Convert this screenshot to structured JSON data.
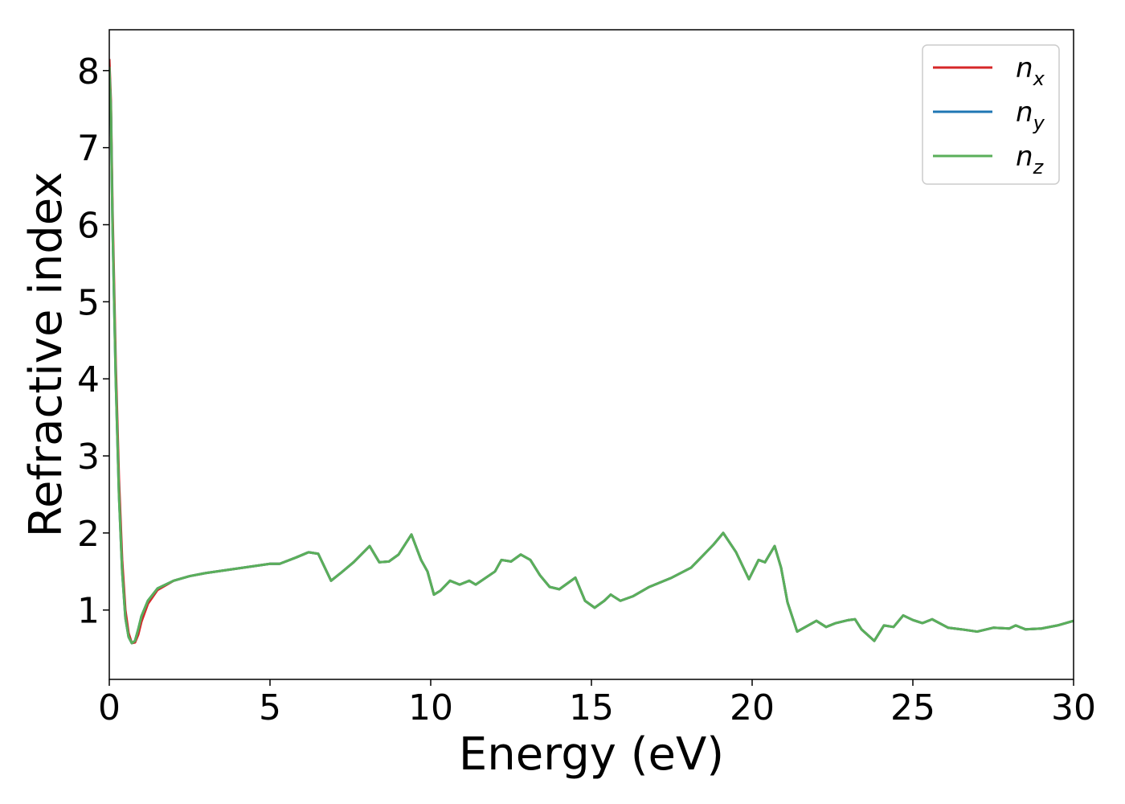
{
  "chart_data": {
    "type": "line",
    "x_label": "Energy (eV)",
    "y_label": "Refractive index",
    "x": [
      0.0,
      0.05,
      0.1,
      0.2,
      0.3,
      0.4,
      0.5,
      0.6,
      0.7,
      0.8,
      0.9,
      1.0,
      1.2,
      1.5,
      2.0,
      2.5,
      3.0,
      4.0,
      5.0,
      5.3,
      5.8,
      6.2,
      6.5,
      6.9,
      7.2,
      7.6,
      8.1,
      8.4,
      8.7,
      9.0,
      9.4,
      9.7,
      9.9,
      10.1,
      10.3,
      10.6,
      10.9,
      11.2,
      11.4,
      12.0,
      12.2,
      12.5,
      12.8,
      13.1,
      13.4,
      13.7,
      14.0,
      14.5,
      14.8,
      15.1,
      15.4,
      15.6,
      15.9,
      16.3,
      16.8,
      17.5,
      18.1,
      18.5,
      18.8,
      19.1,
      19.5,
      19.9,
      20.2,
      20.4,
      20.7,
      20.9,
      21.1,
      21.4,
      22.0,
      22.3,
      22.6,
      23.0,
      23.2,
      23.4,
      23.8,
      24.1,
      24.4,
      24.7,
      25.0,
      25.3,
      25.6,
      26.1,
      26.5,
      27.0,
      27.5,
      28.0,
      28.2,
      28.5,
      29.0,
      29.5,
      30.0
    ],
    "series": [
      {
        "name": "n_x",
        "color": "#d62728",
        "values": [
          8.15,
          7.6,
          6.2,
          4.2,
          2.7,
          1.65,
          1.0,
          0.7,
          0.57,
          0.58,
          0.68,
          0.85,
          1.08,
          1.26,
          1.38,
          1.44,
          1.48,
          1.54,
          1.6,
          1.6,
          1.68,
          1.75,
          1.73,
          1.38,
          1.48,
          1.62,
          1.83,
          1.62,
          1.63,
          1.72,
          1.98,
          1.65,
          1.5,
          1.2,
          1.25,
          1.38,
          1.33,
          1.38,
          1.33,
          1.5,
          1.65,
          1.63,
          1.72,
          1.65,
          1.45,
          1.3,
          1.27,
          1.42,
          1.12,
          1.03,
          1.12,
          1.2,
          1.12,
          1.18,
          1.3,
          1.42,
          1.55,
          1.72,
          1.85,
          2.0,
          1.75,
          1.4,
          1.65,
          1.62,
          1.83,
          1.55,
          1.1,
          0.72,
          0.86,
          0.78,
          0.83,
          0.87,
          0.88,
          0.75,
          0.6,
          0.8,
          0.78,
          0.93,
          0.87,
          0.83,
          0.88,
          0.77,
          0.75,
          0.72,
          0.77,
          0.76,
          0.8,
          0.75,
          0.76,
          0.8,
          0.86
        ]
      },
      {
        "name": "n_y",
        "color": "#1f77b4",
        "values": [
          8.05,
          7.5,
          6.0,
          4.0,
          2.5,
          1.5,
          0.9,
          0.65,
          0.57,
          0.6,
          0.75,
          0.92,
          1.12,
          1.28,
          1.38,
          1.44,
          1.48,
          1.54,
          1.6,
          1.6,
          1.68,
          1.75,
          1.73,
          1.38,
          1.48,
          1.62,
          1.83,
          1.62,
          1.63,
          1.72,
          1.98,
          1.65,
          1.5,
          1.2,
          1.25,
          1.38,
          1.33,
          1.38,
          1.33,
          1.5,
          1.65,
          1.63,
          1.72,
          1.65,
          1.45,
          1.3,
          1.27,
          1.42,
          1.12,
          1.03,
          1.12,
          1.2,
          1.12,
          1.18,
          1.3,
          1.42,
          1.55,
          1.72,
          1.85,
          2.0,
          1.75,
          1.4,
          1.65,
          1.62,
          1.83,
          1.55,
          1.1,
          0.72,
          0.86,
          0.78,
          0.83,
          0.87,
          0.88,
          0.75,
          0.6,
          0.8,
          0.78,
          0.93,
          0.87,
          0.83,
          0.88,
          0.77,
          0.75,
          0.72,
          0.77,
          0.76,
          0.8,
          0.75,
          0.76,
          0.8,
          0.86
        ]
      },
      {
        "name": "n_z",
        "color": "#5aaf5a",
        "values": [
          8.05,
          7.5,
          6.0,
          4.0,
          2.5,
          1.5,
          0.9,
          0.65,
          0.57,
          0.6,
          0.75,
          0.92,
          1.12,
          1.28,
          1.38,
          1.44,
          1.48,
          1.54,
          1.6,
          1.6,
          1.68,
          1.75,
          1.73,
          1.38,
          1.48,
          1.62,
          1.83,
          1.62,
          1.63,
          1.72,
          1.98,
          1.65,
          1.5,
          1.2,
          1.25,
          1.38,
          1.33,
          1.38,
          1.33,
          1.5,
          1.65,
          1.63,
          1.72,
          1.65,
          1.45,
          1.3,
          1.27,
          1.42,
          1.12,
          1.03,
          1.12,
          1.2,
          1.12,
          1.18,
          1.3,
          1.42,
          1.55,
          1.72,
          1.85,
          2.0,
          1.75,
          1.4,
          1.65,
          1.62,
          1.83,
          1.55,
          1.1,
          0.72,
          0.86,
          0.78,
          0.83,
          0.87,
          0.88,
          0.75,
          0.6,
          0.8,
          0.78,
          0.93,
          0.87,
          0.83,
          0.88,
          0.77,
          0.75,
          0.72,
          0.77,
          0.76,
          0.8,
          0.75,
          0.76,
          0.8,
          0.86
        ]
      }
    ],
    "xlim": [
      0,
      30
    ],
    "xticks": [
      0,
      5,
      10,
      15,
      20,
      25,
      30
    ],
    "ylim": [
      0.1,
      8.53
    ],
    "yticks": [
      1,
      2,
      3,
      4,
      5,
      6,
      7,
      8
    ],
    "grid": false,
    "legend": "upper right"
  }
}
